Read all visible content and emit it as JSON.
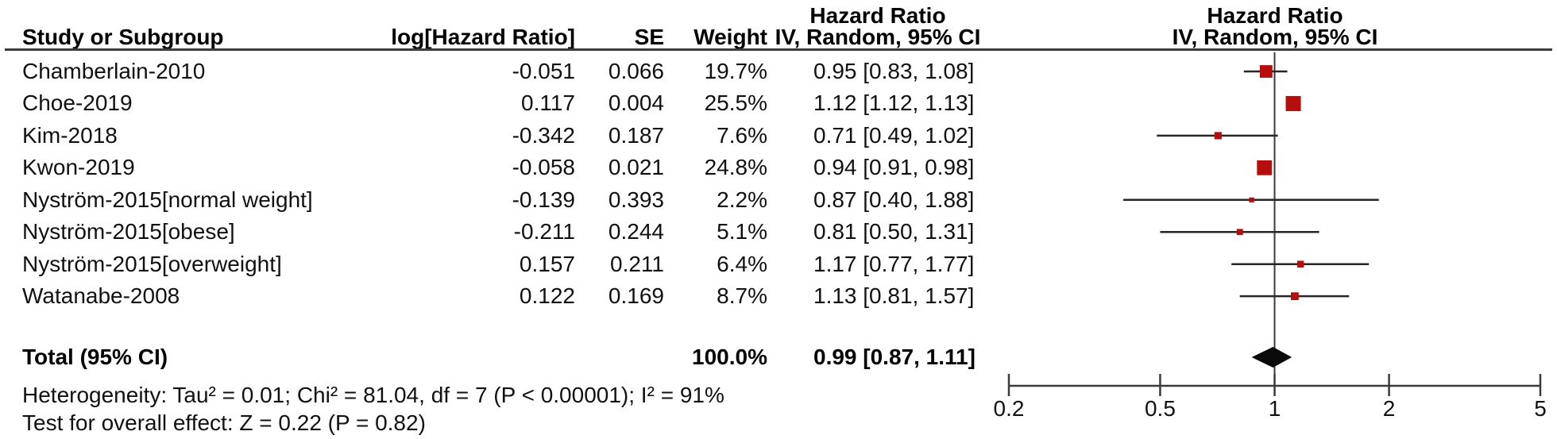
{
  "table": {
    "headers": {
      "study": "Study or Subgroup",
      "log_hr": "log[Hazard Ratio]",
      "se": "SE",
      "weight": "Weight",
      "ci_line1": "Hazard Ratio",
      "ci_line2": "IV, Random, 95% CI",
      "plot_line1": "Hazard Ratio",
      "plot_line2": "IV, Random, 95% CI"
    },
    "rows": [
      {
        "name": "Chamberlain-2010",
        "log_hr": "-0.051",
        "se": "0.066",
        "weight": "19.7%",
        "ci": "0.95 [0.83, 1.08]"
      },
      {
        "name": "Choe-2019",
        "log_hr": "0.117",
        "se": "0.004",
        "weight": "25.5%",
        "ci": "1.12 [1.12, 1.13]"
      },
      {
        "name": "Kim-2018",
        "log_hr": "-0.342",
        "se": "0.187",
        "weight": "7.6%",
        "ci": "0.71 [0.49, 1.02]"
      },
      {
        "name": "Kwon-2019",
        "log_hr": "-0.058",
        "se": "0.021",
        "weight": "24.8%",
        "ci": "0.94 [0.91, 0.98]"
      },
      {
        "name": "Nyström-2015[normal weight]",
        "log_hr": "-0.139",
        "se": "0.393",
        "weight": "2.2%",
        "ci": "0.87 [0.40, 1.88]"
      },
      {
        "name": "Nyström-2015[obese]",
        "log_hr": "-0.211",
        "se": "0.244",
        "weight": "5.1%",
        "ci": "0.81 [0.50, 1.31]"
      },
      {
        "name": "Nyström-2015[overweight]",
        "log_hr": "0.157",
        "se": "0.211",
        "weight": "6.4%",
        "ci": "1.17 [0.77, 1.77]"
      },
      {
        "name": "Watanabe-2008",
        "log_hr": "0.122",
        "se": "0.169",
        "weight": "8.7%",
        "ci": "1.13 [0.81, 1.57]"
      }
    ],
    "total_row": {
      "label": "Total (95% CI)",
      "weight": "100.0%",
      "ci": "0.99 [0.87, 1.11]"
    }
  },
  "footnotes": {
    "heterogeneity": "Heterogeneity: Tau² = 0.01; Chi² = 81.04, df = 7 (P < 0.00001); I² = 91%",
    "overall_effect": "Test for overall effect: Z = 0.22 (P = 0.82)"
  },
  "chart_data": {
    "type": "scatter",
    "subtype": "forest-plot",
    "title": "Hazard Ratio",
    "effect_model": "IV, Random, 95% CI",
    "x_scale": "log",
    "x_range": [
      0.2,
      5
    ],
    "x_ticks": [
      "0.2",
      "0.5",
      "1",
      "2",
      "5"
    ],
    "null_line": 1,
    "studies": [
      {
        "name": "Chamberlain-2010",
        "hr": 0.95,
        "ci_low": 0.83,
        "ci_high": 1.08,
        "weight_pct": 19.7
      },
      {
        "name": "Choe-2019",
        "hr": 1.12,
        "ci_low": 1.12,
        "ci_high": 1.13,
        "weight_pct": 25.5
      },
      {
        "name": "Kim-2018",
        "hr": 0.71,
        "ci_low": 0.49,
        "ci_high": 1.02,
        "weight_pct": 7.6
      },
      {
        "name": "Kwon-2019",
        "hr": 0.94,
        "ci_low": 0.91,
        "ci_high": 0.98,
        "weight_pct": 24.8
      },
      {
        "name": "Nyström-2015[normal weight]",
        "hr": 0.87,
        "ci_low": 0.4,
        "ci_high": 1.88,
        "weight_pct": 2.2
      },
      {
        "name": "Nyström-2015[obese]",
        "hr": 0.81,
        "ci_low": 0.5,
        "ci_high": 1.31,
        "weight_pct": 5.1
      },
      {
        "name": "Nyström-2015[overweight]",
        "hr": 1.17,
        "ci_low": 0.77,
        "ci_high": 1.77,
        "weight_pct": 6.4
      },
      {
        "name": "Watanabe-2008",
        "hr": 1.13,
        "ci_low": 0.81,
        "ci_high": 1.57,
        "weight_pct": 8.7
      }
    ],
    "total": {
      "hr": 0.99,
      "ci_low": 0.87,
      "ci_high": 1.11,
      "weight_pct": 100.0
    },
    "heterogeneity": {
      "tau2": 0.01,
      "chi2": 81.04,
      "df": 7,
      "p": "< 0.00001",
      "i2_pct": 91
    },
    "overall_effect": {
      "z": 0.22,
      "p": 0.82
    }
  },
  "colors": {
    "marker": "#B60D0D",
    "diamond": "#0a0a0a",
    "line": "#3b3b3b",
    "whisker": "#262626",
    "text": "#111111"
  }
}
